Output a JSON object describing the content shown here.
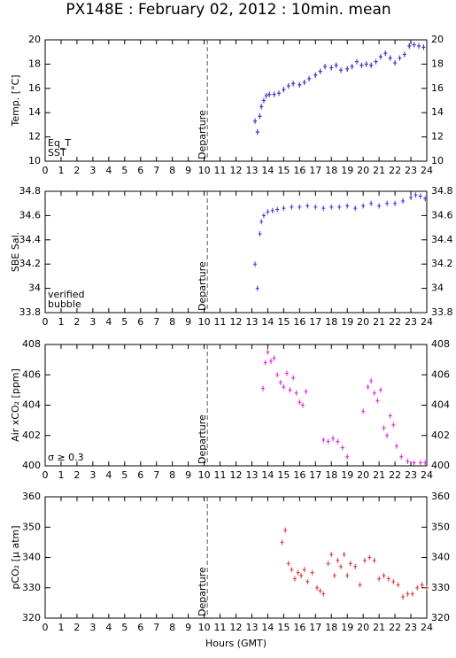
{
  "title": "PX148E : February 02, 2012 : 10min. mean",
  "chart_data": [
    {
      "type": "scatter",
      "ylabel": "Temp. [°C]",
      "xlim": [
        0,
        24
      ],
      "xticks": [
        0,
        1,
        2,
        3,
        4,
        5,
        6,
        7,
        8,
        9,
        10,
        11,
        12,
        13,
        14,
        15,
        16,
        17,
        18,
        19,
        20,
        21,
        22,
        23,
        24
      ],
      "ylim": [
        10,
        20
      ],
      "yticks": [
        10,
        12,
        14,
        16,
        18,
        20
      ],
      "annotations": [
        {
          "text": "Departure",
          "x": 10.2
        }
      ],
      "series": [
        {
          "name": "Eq_T",
          "color": "#dd2222",
          "x": [
            13.2,
            13.35,
            13.5,
            13.6,
            13.75,
            13.9,
            14.1,
            14.4,
            14.7,
            15.0,
            15.3,
            15.6,
            16.0,
            16.3,
            16.6,
            17.0,
            17.3,
            17.6,
            18.0,
            18.3,
            18.6,
            19.0,
            19.3,
            19.6,
            19.9,
            20.2,
            20.5,
            20.8,
            21.1,
            21.4,
            21.7,
            22.0,
            22.3,
            22.6,
            22.9,
            23.2,
            23.5,
            23.8
          ],
          "values": [
            13.3,
            12.4,
            13.7,
            14.5,
            15.0,
            15.4,
            15.5,
            15.5,
            15.6,
            15.9,
            16.2,
            16.4,
            16.3,
            16.5,
            16.8,
            17.1,
            17.4,
            17.8,
            17.7,
            17.9,
            17.5,
            17.6,
            17.8,
            18.2,
            17.9,
            18.0,
            17.9,
            18.2,
            18.6,
            18.9,
            18.5,
            18.1,
            18.5,
            18.8,
            19.5,
            19.6,
            19.5,
            19.4
          ]
        },
        {
          "name": "SST",
          "color": "#3333dd",
          "x": [
            13.2,
            13.35,
            13.5,
            13.6,
            13.75,
            13.9,
            14.1,
            14.4,
            14.7,
            15.0,
            15.3,
            15.6,
            16.0,
            16.3,
            16.6,
            17.0,
            17.3,
            17.6,
            18.0,
            18.3,
            18.6,
            19.0,
            19.3,
            19.6,
            19.9,
            20.2,
            20.5,
            20.8,
            21.1,
            21.4,
            21.7,
            22.0,
            22.3,
            22.6,
            22.9,
            23.2,
            23.5,
            23.8
          ],
          "values": [
            13.3,
            12.4,
            13.7,
            14.5,
            15.0,
            15.4,
            15.5,
            15.5,
            15.6,
            15.9,
            16.2,
            16.4,
            16.3,
            16.5,
            16.8,
            17.1,
            17.4,
            17.8,
            17.7,
            17.9,
            17.5,
            17.6,
            17.8,
            18.2,
            17.9,
            18.0,
            17.9,
            18.2,
            18.6,
            18.9,
            18.5,
            18.1,
            18.5,
            18.8,
            19.5,
            19.6,
            19.5,
            19.4
          ]
        }
      ]
    },
    {
      "type": "scatter",
      "ylabel": "SBE Sal.",
      "xlim": [
        0,
        24
      ],
      "xticks": [
        0,
        1,
        2,
        3,
        4,
        5,
        6,
        7,
        8,
        9,
        10,
        11,
        12,
        13,
        14,
        15,
        16,
        17,
        18,
        19,
        20,
        21,
        22,
        23,
        24
      ],
      "ylim": [
        33.8,
        34.8
      ],
      "yticks": [
        33.8,
        34,
        34.2,
        34.4,
        34.6,
        34.8
      ],
      "annotations": [
        {
          "text": "Departure",
          "x": 10.2
        }
      ],
      "series": [
        {
          "name": "verified",
          "color": "#3333dd",
          "x": [
            13.2,
            13.35,
            13.5,
            13.6,
            13.75,
            14.0,
            14.3,
            14.6,
            15.0,
            15.5,
            16.0,
            16.5,
            17.0,
            17.5,
            18.0,
            18.5,
            19.0,
            19.5,
            20.0,
            20.5,
            21.0,
            21.5,
            22.0,
            22.5,
            23.0,
            23.3,
            23.6,
            23.9
          ],
          "values": [
            34.2,
            34.0,
            34.45,
            34.55,
            34.6,
            34.63,
            34.64,
            34.65,
            34.66,
            34.67,
            34.67,
            34.68,
            34.67,
            34.66,
            34.67,
            34.67,
            34.68,
            34.66,
            34.68,
            34.7,
            34.68,
            34.7,
            34.7,
            34.72,
            34.75,
            34.77,
            34.76,
            34.74
          ]
        },
        {
          "name": "bubble",
          "color": "#dd22dd",
          "x": [],
          "values": []
        }
      ]
    },
    {
      "type": "scatter",
      "ylabel": "Air xCO₂ [ppm]",
      "xlim": [
        0,
        24
      ],
      "xticks": [
        0,
        1,
        2,
        3,
        4,
        5,
        6,
        7,
        8,
        9,
        10,
        11,
        12,
        13,
        14,
        15,
        16,
        17,
        18,
        19,
        20,
        21,
        22,
        23,
        24
      ],
      "ylim": [
        400,
        408
      ],
      "yticks": [
        400,
        402,
        404,
        406,
        408
      ],
      "annotations": [
        {
          "text": "Departure",
          "x": 10.2
        }
      ],
      "series": [
        {
          "name": "σ ≥ 0.3",
          "color": "#dd22dd",
          "x": [
            13.7,
            13.85,
            14.0,
            14.2,
            14.4,
            14.6,
            14.8,
            15.0,
            15.2,
            15.4,
            15.6,
            15.8,
            16.0,
            16.2,
            16.4,
            17.5,
            17.8,
            18.1,
            18.4,
            18.7,
            19.0,
            20.0,
            20.3,
            20.5,
            20.7,
            20.9,
            21.1,
            21.3,
            21.5,
            21.7,
            21.9,
            22.1,
            22.4,
            22.8,
            23.2,
            23.6,
            23.9
          ],
          "values": [
            405.1,
            406.8,
            407.5,
            406.9,
            407.1,
            406.0,
            405.5,
            405.2,
            406.1,
            405.0,
            405.8,
            404.8,
            404.2,
            404.0,
            404.9,
            401.7,
            401.6,
            401.8,
            401.6,
            401.2,
            400.6,
            403.6,
            405.2,
            405.6,
            404.8,
            404.3,
            405.0,
            402.5,
            402.0,
            403.3,
            402.7,
            401.3,
            400.6,
            400.3,
            400.2,
            400.2,
            400.2
          ]
        }
      ]
    },
    {
      "type": "scatter",
      "ylabel": "pCO₂ [µ atm]",
      "xlabel": "Hours (GMT)",
      "xlim": [
        0,
        24
      ],
      "xticks": [
        0,
        1,
        2,
        3,
        4,
        5,
        6,
        7,
        8,
        9,
        10,
        11,
        12,
        13,
        14,
        15,
        16,
        17,
        18,
        19,
        20,
        21,
        22,
        23,
        24
      ],
      "ylim": [
        320,
        360
      ],
      "yticks": [
        320,
        330,
        340,
        350,
        360
      ],
      "annotations": [
        {
          "text": "Departure",
          "x": 10.2
        }
      ],
      "series": [
        {
          "color": "#dd3333",
          "x": [
            14.9,
            15.1,
            15.3,
            15.5,
            15.7,
            15.9,
            16.1,
            16.3,
            16.5,
            16.8,
            17.1,
            17.3,
            17.5,
            17.8,
            18.0,
            18.2,
            18.4,
            18.6,
            18.8,
            19.0,
            19.2,
            19.5,
            19.8,
            20.1,
            20.4,
            20.7,
            21.0,
            21.3,
            21.6,
            21.9,
            22.2,
            22.5,
            22.8,
            23.1,
            23.4,
            23.7,
            24.0
          ],
          "values": [
            345,
            349,
            338,
            336,
            333,
            335,
            334,
            336,
            332,
            335,
            330,
            329,
            328,
            338,
            341,
            334,
            339,
            337,
            341,
            334,
            338,
            337,
            331,
            339,
            340,
            339,
            333,
            334,
            333,
            332,
            331,
            327,
            328,
            328,
            330,
            331,
            330
          ]
        }
      ]
    }
  ]
}
